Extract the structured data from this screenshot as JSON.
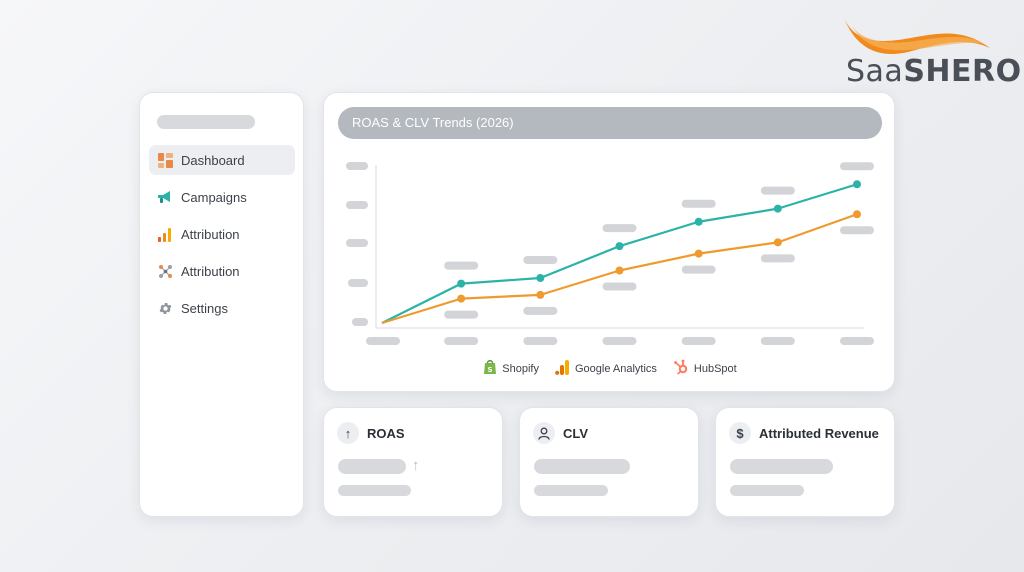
{
  "brand": {
    "logo_text_light": "Saa",
    "logo_text_bold": "SHERO",
    "swoosh_color": "#f08a1c"
  },
  "sidebar": {
    "items": [
      {
        "label": "Dashboard",
        "icon": "dashboard-grid-icon",
        "active": true
      },
      {
        "label": "Campaigns",
        "icon": "megaphone-icon",
        "active": false
      },
      {
        "label": "Attribution",
        "icon": "bar-chart-icon",
        "active": false
      },
      {
        "label": "Attribution",
        "icon": "network-nodes-icon",
        "active": false
      },
      {
        "label": "Settings",
        "icon": "gear-icon",
        "active": false
      }
    ]
  },
  "chart": {
    "title": "ROAS & CLV Trends (2026)"
  },
  "chart_data": {
    "type": "line",
    "title": "ROAS & CLV Trends (2026)",
    "x": [
      0,
      1,
      2,
      3,
      4,
      5,
      6
    ],
    "tick_labels_visible": false,
    "series": [
      {
        "color": "#2bb3a8",
        "values": [
          0,
          2.1,
          2.4,
          4.1,
          5.4,
          6.1,
          7.4
        ]
      },
      {
        "color": "#ef9a2e",
        "values": [
          0,
          1.3,
          1.5,
          2.8,
          3.7,
          4.3,
          5.8
        ]
      }
    ],
    "ylim": [
      0,
      8
    ],
    "grid": false
  },
  "legend": [
    {
      "label": "Shopify",
      "icon": "shopify-bag-icon",
      "color": "#7ab648"
    },
    {
      "label": "Google Analytics",
      "icon": "google-analytics-icon",
      "color": "#f9ab00"
    },
    {
      "label": "HubSpot",
      "icon": "hubspot-sprocket-icon",
      "color": "#ff7a59"
    }
  ],
  "kpis": [
    {
      "label": "ROAS",
      "icon": "arrow-up-icon",
      "glyph": "↑",
      "trend_glyph": "↑"
    },
    {
      "label": "CLV",
      "icon": "user-icon",
      "glyph": ""
    },
    {
      "label": "Attributed Revenue",
      "icon": "dollar-icon",
      "glyph": "$"
    }
  ]
}
